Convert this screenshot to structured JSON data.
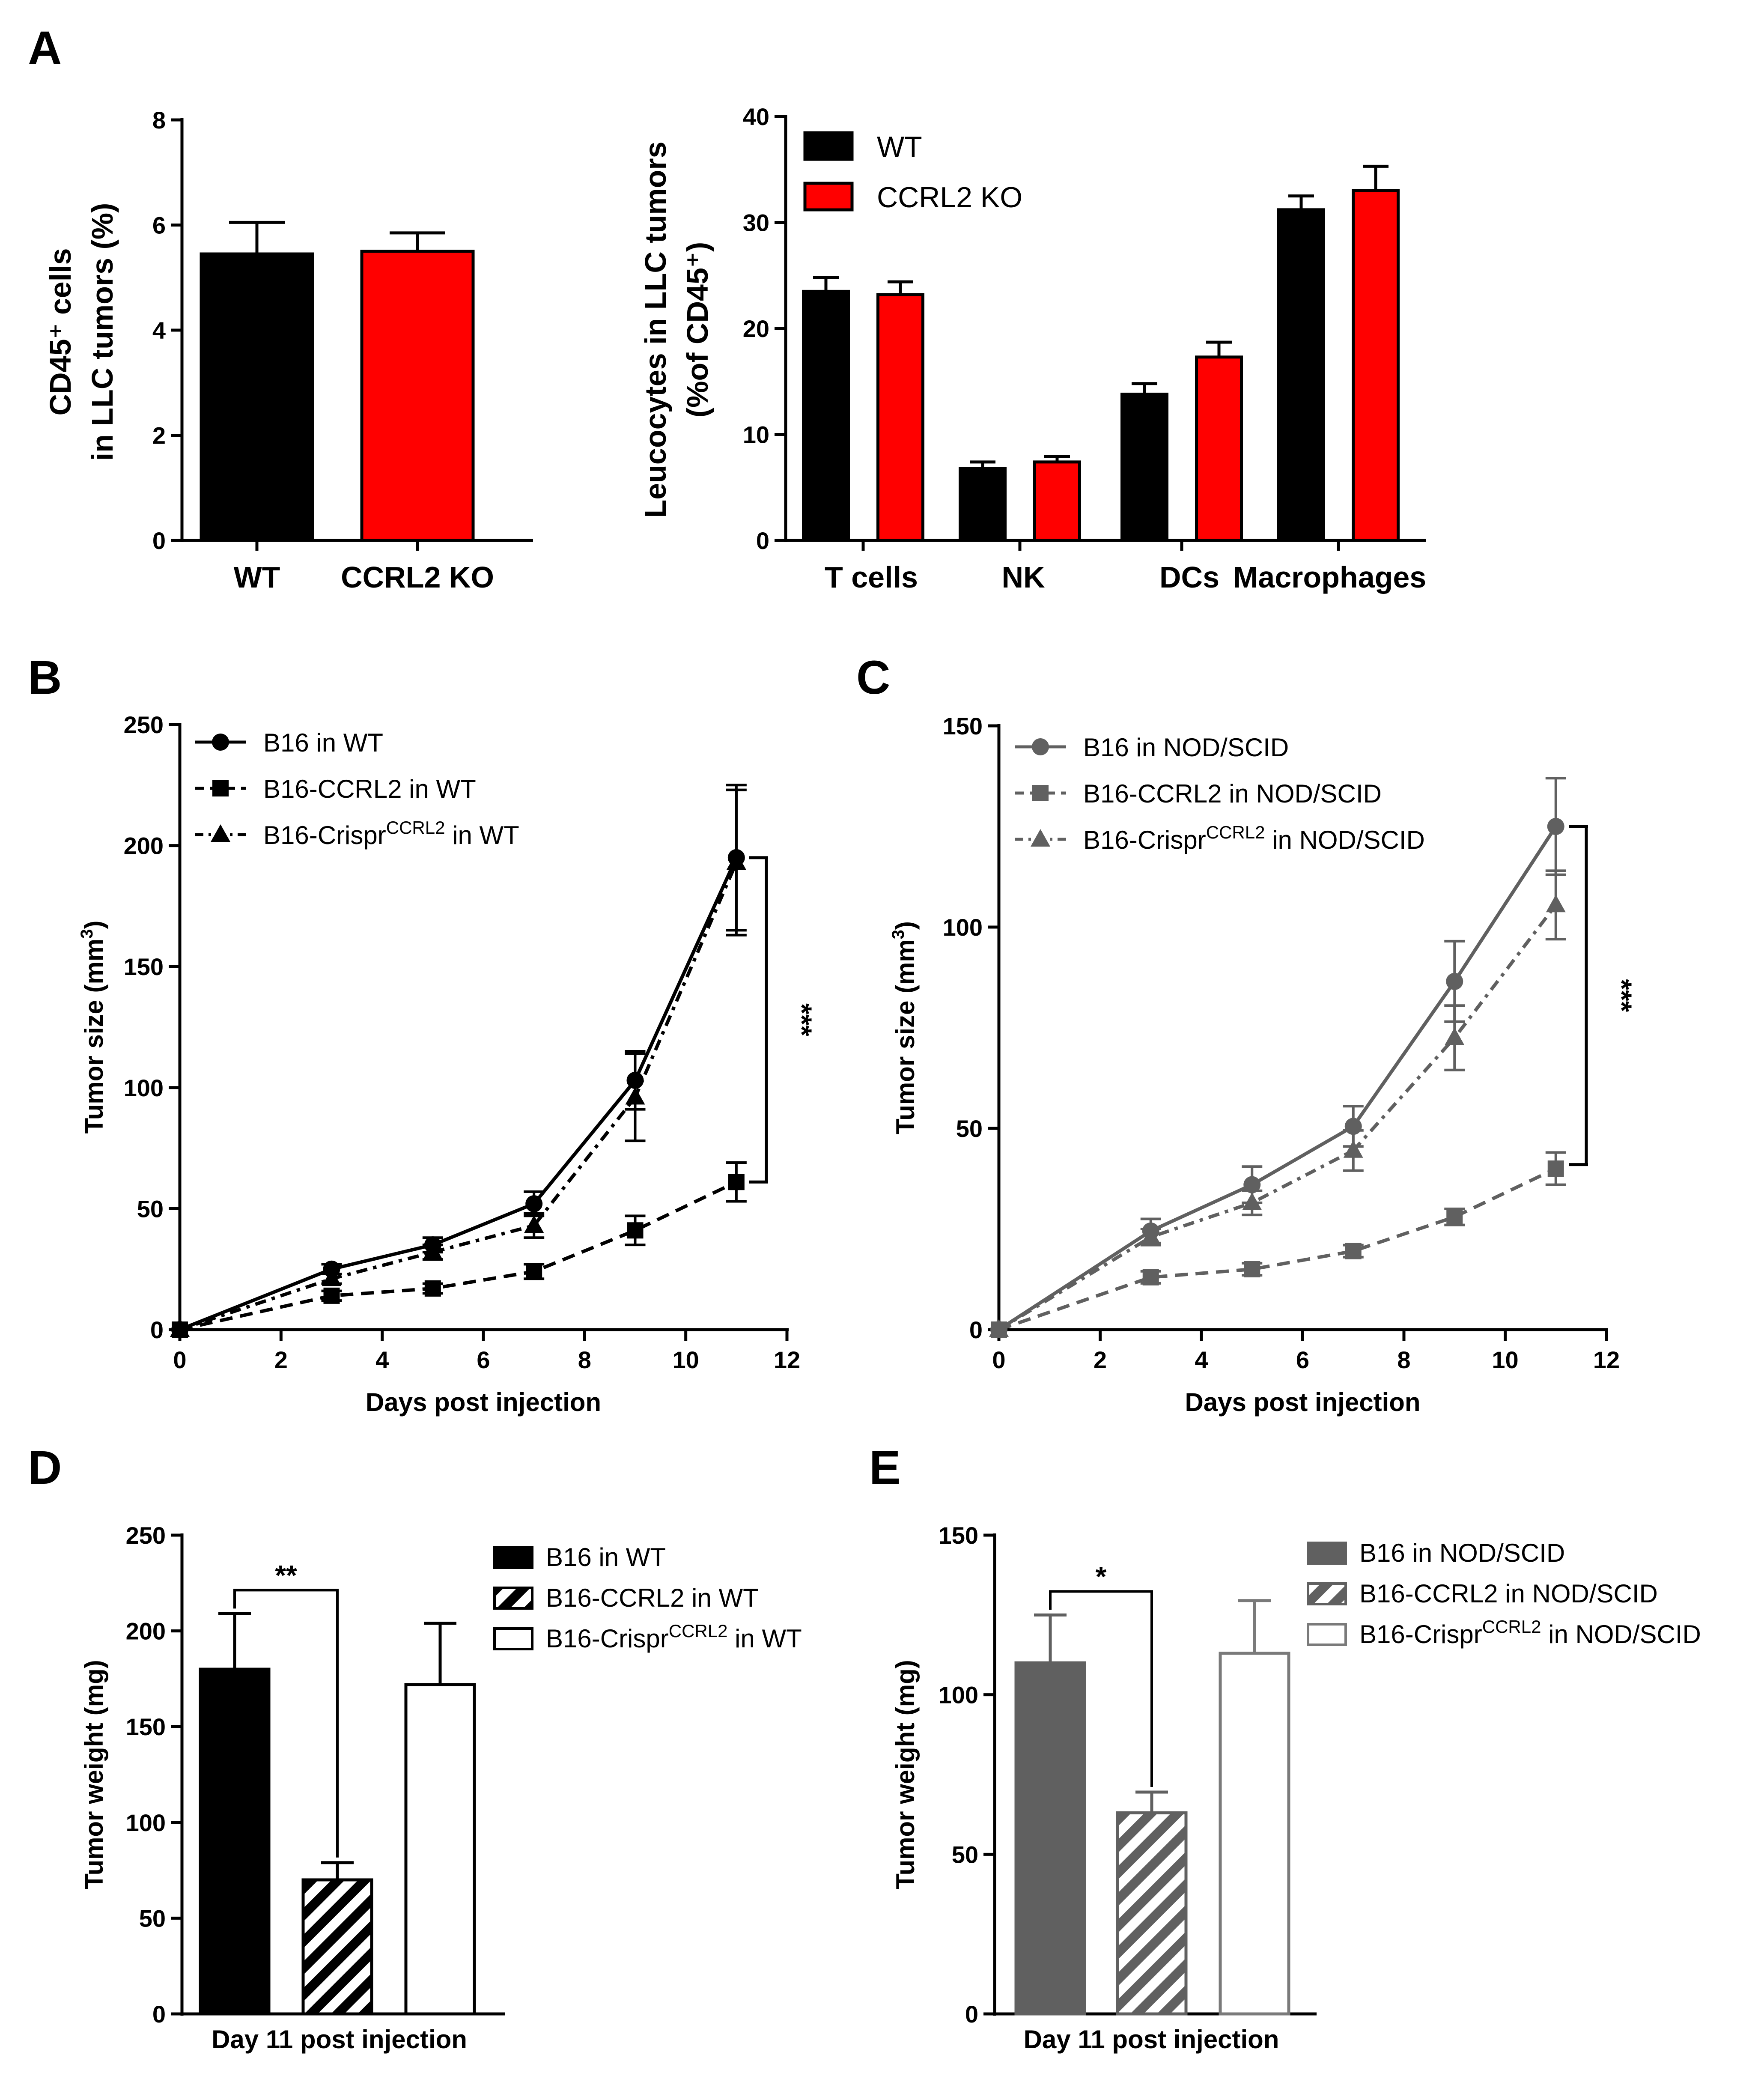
{
  "colors": {
    "black": "#000000",
    "red": "#ff0000",
    "gray": "#606060",
    "gray_light": "#7a7a7a",
    "white": "#ffffff"
  },
  "chart_data": [
    {
      "id": "A1",
      "panel": "A",
      "type": "bar",
      "title": "",
      "ylabel_lines": [
        "CD45⁺ cells",
        "in LLC tumors (%)"
      ],
      "xlabel": "",
      "ylim": [
        0,
        8
      ],
      "yticks": [
        "0",
        "2",
        "4",
        "6",
        "8"
      ],
      "categories": [
        "WT",
        "CCRL2 KO"
      ],
      "values": [
        5.45,
        5.5
      ],
      "errors": [
        0.6,
        0.35
      ],
      "fills": [
        "black",
        "red"
      ]
    },
    {
      "id": "A2",
      "type": "bar",
      "title": "",
      "ylabel_lines": [
        "Leucocytes in LLC tumors",
        "(%of CD45⁺)"
      ],
      "xlabel": "",
      "ylim": [
        0,
        40
      ],
      "yticks": [
        "0",
        "10",
        "20",
        "30",
        "40"
      ],
      "categories": [
        "T cells",
        "NK",
        "DCs",
        "Macrophages"
      ],
      "legend": [
        "WT",
        "CCRL2 KO"
      ],
      "legend_position": "top-left",
      "series": [
        {
          "name": "WT",
          "color": "black",
          "values": [
            23.5,
            6.8,
            13.8,
            31.2
          ],
          "errors": [
            1.3,
            0.6,
            1.0,
            1.3
          ]
        },
        {
          "name": "CCRL2 KO",
          "color": "red",
          "values": [
            23.2,
            7.4,
            17.3,
            33.0
          ],
          "errors": [
            1.2,
            0.5,
            1.4,
            2.3
          ]
        }
      ]
    },
    {
      "id": "B",
      "panel": "B",
      "type": "line",
      "title": "",
      "xlabel": "Days post injection",
      "ylabel": "Tumor size (mm³)",
      "xlim": [
        0,
        12
      ],
      "ylim": [
        0,
        250
      ],
      "xticks": [
        "0",
        "2",
        "4",
        "6",
        "8",
        "10",
        "12"
      ],
      "yticks": [
        "0",
        "50",
        "100",
        "150",
        "200",
        "250"
      ],
      "x": [
        0,
        3,
        5,
        7,
        9,
        11
      ],
      "legend_position": "top-left",
      "series": [
        {
          "name": "B16 in WT",
          "marker": "circle",
          "dash": "solid",
          "values": [
            0,
            25,
            35,
            52,
            103,
            195
          ],
          "errors": [
            0,
            2,
            3,
            5,
            12,
            30
          ]
        },
        {
          "name": "B16-CCRL2 in WT",
          "marker": "square",
          "dash": "dashed",
          "values": [
            0,
            14,
            17,
            24,
            41,
            61
          ],
          "errors": [
            0,
            2,
            2,
            3,
            6,
            8
          ]
        },
        {
          "name": "B16-Crispr",
          "name_sup": "CCRL2",
          "name_suffix": " in WT",
          "marker": "triangle",
          "dash": "dashdot",
          "values": [
            0,
            21,
            32,
            43,
            96,
            193
          ],
          "errors": [
            0,
            2,
            3,
            5,
            18,
            30
          ]
        }
      ],
      "significance": {
        "label": "***",
        "y_from": 61,
        "y_to": 195
      }
    },
    {
      "id": "C",
      "panel": "C",
      "type": "line",
      "title": "",
      "xlabel": "Days post injection",
      "ylabel": "Tumor size (mm³)",
      "xlim": [
        0,
        12
      ],
      "ylim": [
        0,
        150
      ],
      "xticks": [
        "0",
        "2",
        "4",
        "6",
        "8",
        "10",
        "12"
      ],
      "yticks": [
        "0",
        "50",
        "100",
        "150"
      ],
      "x": [
        0,
        3,
        5,
        7,
        9,
        11
      ],
      "color": "gray",
      "legend_position": "top-left",
      "series": [
        {
          "name": "B16 in NOD/SCID",
          "marker": "circle",
          "dash": "solid",
          "values": [
            0,
            24.5,
            36,
            50.5,
            86.5,
            125
          ],
          "errors": [
            0,
            3,
            4.5,
            5,
            10,
            12
          ]
        },
        {
          "name": "B16-CCRL2 in NOD/SCID",
          "marker": "square",
          "dash": "dashed",
          "values": [
            0,
            13,
            15,
            19.5,
            28,
            40
          ],
          "errors": [
            0,
            1.5,
            1.5,
            1.5,
            2,
            4
          ]
        },
        {
          "name": "B16-Crispr",
          "name_sup": "CCRL2",
          "name_suffix": " in NOD/SCID",
          "marker": "triangle",
          "dash": "dashdot",
          "values": [
            0,
            23,
            31.5,
            44.5,
            72.5,
            105.5
          ],
          "errors": [
            0,
            2,
            3,
            5,
            8,
            8.5
          ]
        }
      ],
      "significance": {
        "label": "***",
        "y_from": 41,
        "y_to": 125
      }
    },
    {
      "id": "D",
      "panel": "D",
      "type": "bar",
      "title": "",
      "xlabel": "Day 11 post injection",
      "ylabel": "Tumor weight (mg)",
      "ylim": [
        0,
        250
      ],
      "yticks": [
        "0",
        "50",
        "100",
        "150",
        "200",
        "250"
      ],
      "legend_position": "top-right",
      "series": [
        {
          "name": "B16 in WT",
          "fill": "solid",
          "color": "black",
          "value": 180,
          "error": 29
        },
        {
          "name": "B16-CCRL2 in WT",
          "fill": "hatched",
          "color": "black",
          "value": 70,
          "error": 9
        },
        {
          "name": "B16-Crispr",
          "name_sup": "CCRL2",
          "name_suffix": " in WT",
          "fill": "white",
          "color": "black",
          "value": 172,
          "error": 32
        }
      ],
      "significance": {
        "label": "**",
        "between": [
          0,
          1
        ]
      }
    },
    {
      "id": "E",
      "panel": "E",
      "type": "bar",
      "title": "",
      "xlabel": "Day 11 post injection",
      "ylabel": "Tumor weight (mg)",
      "ylim": [
        0,
        150
      ],
      "yticks": [
        "0",
        "50",
        "100",
        "150"
      ],
      "legend_position": "top-right",
      "series": [
        {
          "name": "B16 in NOD/SCID",
          "fill": "solid",
          "color": "gray",
          "value": 110,
          "error": 15
        },
        {
          "name": "B16-CCRL2 in NOD/SCID",
          "fill": "hatched",
          "color": "gray",
          "value": 63,
          "error": 6.5
        },
        {
          "name": "B16-Crispr",
          "name_sup": "CCRL2",
          "name_suffix": " in NOD/SCID",
          "fill": "white",
          "color": "gray_light",
          "value": 113,
          "error": 16.5
        }
      ],
      "significance": {
        "label": "*",
        "between": [
          0,
          1
        ]
      }
    }
  ]
}
